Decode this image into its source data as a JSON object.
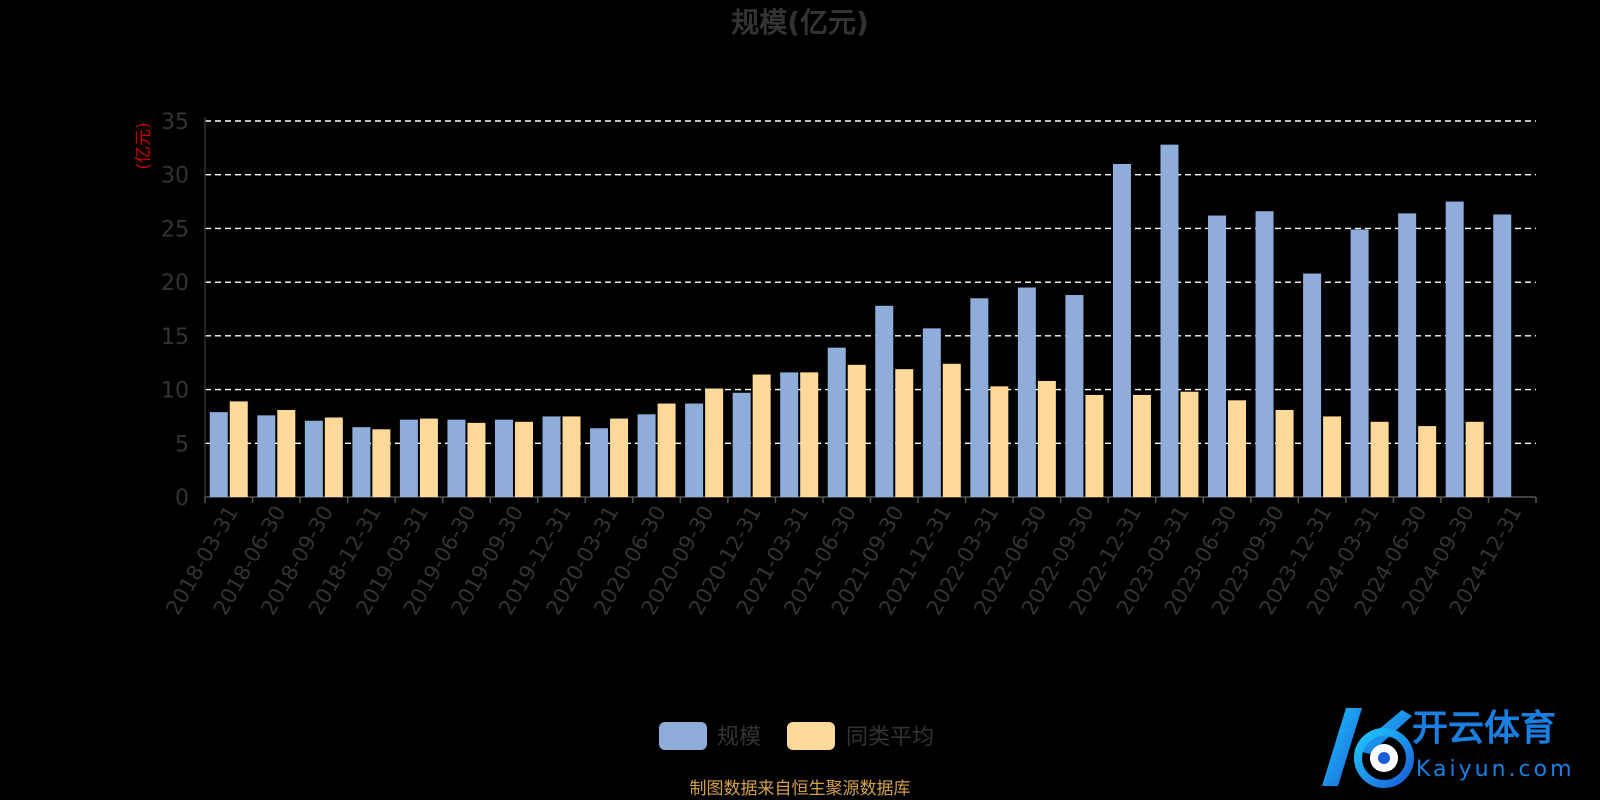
{
  "chart_data": {
    "type": "bar",
    "title": "规模(亿元)",
    "ylabel": "(亿元)",
    "ylim": [
      0,
      35
    ],
    "yticks": [
      0,
      5,
      10,
      15,
      20,
      25,
      30,
      35
    ],
    "grid": true,
    "legend_position": "bottom-center",
    "categories": [
      "2018-03-31",
      "2018-06-30",
      "2018-09-30",
      "2018-12-31",
      "2019-03-31",
      "2019-06-30",
      "2019-09-30",
      "2019-12-31",
      "2020-03-31",
      "2020-06-30",
      "2020-09-30",
      "2020-12-31",
      "2021-03-31",
      "2021-06-30",
      "2021-09-30",
      "2021-12-31",
      "2022-03-31",
      "2022-06-30",
      "2022-09-30",
      "2022-12-31",
      "2023-03-31",
      "2023-06-30",
      "2023-09-30",
      "2023-12-31",
      "2024-03-31",
      "2024-06-30",
      "2024-09-30",
      "2024-12-31"
    ],
    "series": [
      {
        "name": "规模",
        "color": "#8eadd9",
        "values": [
          7.9,
          7.6,
          7.1,
          6.5,
          7.2,
          7.2,
          7.2,
          7.5,
          6.4,
          7.7,
          8.7,
          9.7,
          11.6,
          13.9,
          17.8,
          15.7,
          18.5,
          19.5,
          18.8,
          31.0,
          32.8,
          26.2,
          26.6,
          20.8,
          24.9,
          26.4,
          27.5,
          26.3
        ]
      },
      {
        "name": "同类平均",
        "color": "#ffd99a",
        "values": [
          8.9,
          8.1,
          7.4,
          6.3,
          7.3,
          6.9,
          7.0,
          7.5,
          7.3,
          8.7,
          10.1,
          11.4,
          11.6,
          12.3,
          11.9,
          12.4,
          10.3,
          10.8,
          9.5,
          9.5,
          9.8,
          9.0,
          8.1,
          7.5,
          7.0,
          6.6,
          7.0,
          null
        ]
      }
    ]
  },
  "source_text": "制图数据来自恒生聚源数据库",
  "watermark": {
    "brand": "开云体育",
    "site": "Kaiyun.com"
  },
  "colors": {
    "axis_text": "#333333",
    "ylabel": "#cc0000",
    "grid": "#ffffff",
    "source": "#d4a046"
  }
}
